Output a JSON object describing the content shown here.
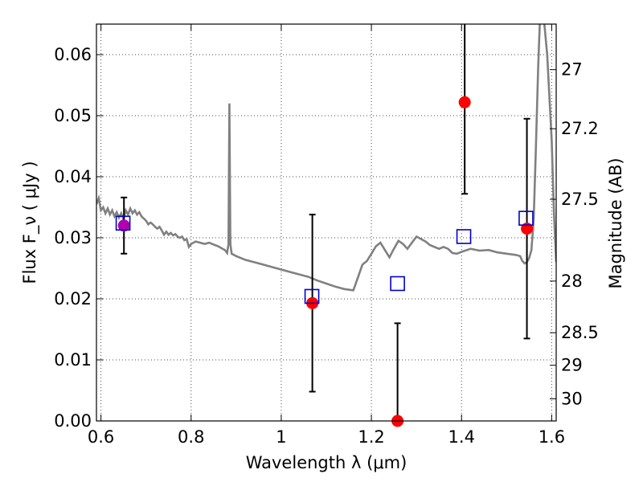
{
  "chart_data": {
    "type": "scatter",
    "xlabel": "Wavelength  λ (μm)",
    "ylabel": "Flux  F_ν  ( μJy )",
    "y2label": "Magnitude (AB)",
    "xlim": [
      0.59,
      1.61
    ],
    "ylim": [
      0.0,
      0.065
    ],
    "grid": true,
    "x_ticks": [
      0.6,
      0.8,
      1.0,
      1.2,
      1.4,
      1.6
    ],
    "x_tick_labels": [
      "0.6",
      "0.8",
      "1",
      "1.2",
      "1.4",
      "1.6"
    ],
    "y_ticks": [
      0.0,
      0.01,
      0.02,
      0.03,
      0.04,
      0.05,
      0.06
    ],
    "y_tick_labels": [
      "0.00",
      "0.01",
      "0.02",
      "0.03",
      "0.04",
      "0.05",
      "0.06"
    ],
    "right_ticks": [
      {
        "label": "27",
        "value": 27
      },
      {
        "label": "27.2",
        "value": 27.2
      },
      {
        "label": "27.5",
        "value": 27.5
      },
      {
        "label": "28",
        "value": 28
      },
      {
        "label": "28.5",
        "value": 28.5
      },
      {
        "label": "29",
        "value": 29
      },
      {
        "label": "30",
        "value": 30
      }
    ],
    "model_spectrum": {
      "color": "#808080",
      "points": [
        [
          0.59,
          0.0355
        ],
        [
          0.595,
          0.0365
        ],
        [
          0.6,
          0.0345
        ],
        [
          0.605,
          0.035
        ],
        [
          0.61,
          0.034
        ],
        [
          0.615,
          0.0348
        ],
        [
          0.62,
          0.0338
        ],
        [
          0.625,
          0.0345
        ],
        [
          0.63,
          0.0335
        ],
        [
          0.635,
          0.0342
        ],
        [
          0.64,
          0.0333
        ],
        [
          0.645,
          0.034
        ],
        [
          0.65,
          0.033
        ],
        [
          0.655,
          0.0345
        ],
        [
          0.66,
          0.0338
        ],
        [
          0.665,
          0.0348
        ],
        [
          0.67,
          0.034
        ],
        [
          0.675,
          0.0345
        ],
        [
          0.68,
          0.0338
        ],
        [
          0.685,
          0.0342
        ],
        [
          0.69,
          0.0335
        ],
        [
          0.7,
          0.0328
        ],
        [
          0.705,
          0.0322
        ],
        [
          0.71,
          0.0325
        ],
        [
          0.715,
          0.0322
        ],
        [
          0.72,
          0.0318
        ],
        [
          0.725,
          0.0315
        ],
        [
          0.73,
          0.0318
        ],
        [
          0.735,
          0.0312
        ],
        [
          0.74,
          0.0305
        ],
        [
          0.745,
          0.031
        ],
        [
          0.75,
          0.0305
        ],
        [
          0.755,
          0.0308
        ],
        [
          0.76,
          0.0304
        ],
        [
          0.765,
          0.0306
        ],
        [
          0.77,
          0.0302
        ],
        [
          0.775,
          0.03
        ],
        [
          0.78,
          0.0302
        ],
        [
          0.785,
          0.0296
        ],
        [
          0.79,
          0.0298
        ],
        [
          0.795,
          0.0285
        ],
        [
          0.8,
          0.029
        ],
        [
          0.805,
          0.0292
        ],
        [
          0.81,
          0.0294
        ],
        [
          0.82,
          0.0292
        ],
        [
          0.83,
          0.029
        ],
        [
          0.84,
          0.0292
        ],
        [
          0.85,
          0.0289
        ],
        [
          0.86,
          0.0286
        ],
        [
          0.87,
          0.0282
        ],
        [
          0.875,
          0.028
        ],
        [
          0.88,
          0.0275
        ],
        [
          0.883,
          0.029
        ],
        [
          0.885,
          0.052
        ],
        [
          0.887,
          0.029
        ],
        [
          0.89,
          0.0274
        ],
        [
          0.9,
          0.027
        ],
        [
          0.92,
          0.0264
        ],
        [
          0.94,
          0.026
        ],
        [
          0.96,
          0.0256
        ],
        [
          0.98,
          0.0252
        ],
        [
          1.0,
          0.0248
        ],
        [
          1.02,
          0.0244
        ],
        [
          1.04,
          0.024
        ],
        [
          1.06,
          0.0236
        ],
        [
          1.08,
          0.023
        ],
        [
          1.1,
          0.0225
        ],
        [
          1.12,
          0.022
        ],
        [
          1.14,
          0.0216
        ],
        [
          1.16,
          0.0214
        ],
        [
          1.17,
          0.0235
        ],
        [
          1.18,
          0.0256
        ],
        [
          1.19,
          0.0262
        ],
        [
          1.2,
          0.0274
        ],
        [
          1.21,
          0.0286
        ],
        [
          1.22,
          0.0292
        ],
        [
          1.23,
          0.028
        ],
        [
          1.24,
          0.0268
        ],
        [
          1.25,
          0.0282
        ],
        [
          1.26,
          0.0295
        ],
        [
          1.27,
          0.029
        ],
        [
          1.28,
          0.0282
        ],
        [
          1.29,
          0.0292
        ],
        [
          1.3,
          0.0302
        ],
        [
          1.31,
          0.0298
        ],
        [
          1.32,
          0.0294
        ],
        [
          1.33,
          0.0288
        ],
        [
          1.34,
          0.0285
        ],
        [
          1.35,
          0.0282
        ],
        [
          1.36,
          0.0285
        ],
        [
          1.37,
          0.0282
        ],
        [
          1.38,
          0.0275
        ],
        [
          1.39,
          0.0274
        ],
        [
          1.4,
          0.0277
        ],
        [
          1.42,
          0.0282
        ],
        [
          1.44,
          0.0279
        ],
        [
          1.46,
          0.028
        ],
        [
          1.48,
          0.0276
        ],
        [
          1.5,
          0.0274
        ],
        [
          1.52,
          0.0272
        ],
        [
          1.53,
          0.027
        ],
        [
          1.535,
          0.0262
        ],
        [
          1.54,
          0.0258
        ],
        [
          1.545,
          0.026
        ],
        [
          1.55,
          0.0267
        ],
        [
          1.555,
          0.028
        ],
        [
          1.56,
          0.033
        ],
        [
          1.565,
          0.045
        ],
        [
          1.57,
          0.058
        ],
        [
          1.575,
          0.068
        ],
        [
          1.58,
          0.068
        ],
        [
          1.59,
          0.06
        ],
        [
          1.6,
          0.046
        ],
        [
          1.605,
          0.034
        ],
        [
          1.61,
          0.026
        ]
      ]
    },
    "observed": {
      "color": "#ff0000",
      "points": [
        {
          "x": 0.651,
          "y": 0.032,
          "yerr_low": 0.0046,
          "yerr_high": 0.0046
        },
        {
          "x": 1.069,
          "y": 0.0193,
          "yerr_low": 0.0145,
          "yerr_high": 0.0145
        },
        {
          "x": 1.258,
          "y": 0.0,
          "yerr_low": 0.0,
          "yerr_high": 0.016
        },
        {
          "x": 1.407,
          "y": 0.0522,
          "yerr_low": 0.015,
          "yerr_high": 0.015
        },
        {
          "x": 1.545,
          "y": 0.0315,
          "yerr_low": 0.018,
          "yerr_high": 0.018
        }
      ]
    },
    "model_photometry": {
      "color": "#0000cc",
      "points": [
        {
          "x": 0.649,
          "y": 0.0324
        },
        {
          "x": 1.068,
          "y": 0.0204
        },
        {
          "x": 1.258,
          "y": 0.0225
        },
        {
          "x": 1.405,
          "y": 0.0302
        },
        {
          "x": 1.543,
          "y": 0.0332
        }
      ]
    },
    "overlap_color": "#b000b0"
  }
}
